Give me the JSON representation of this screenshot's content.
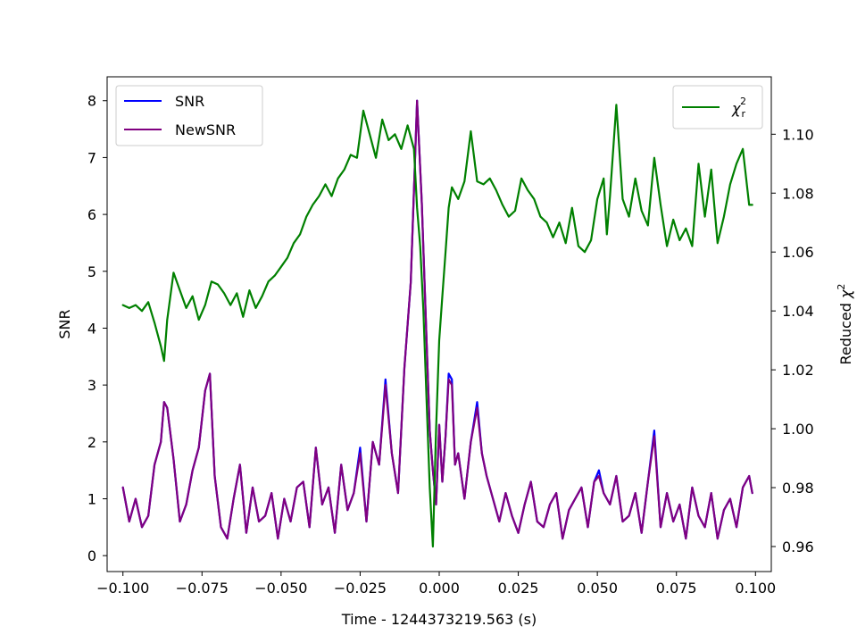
{
  "chart_data": {
    "type": "line",
    "xlabel": "Time - 1244373219.563 (s)",
    "ylabel_left": "SNR",
    "ylabel_right_text": "Reduced ",
    "ylabel_right_symbol": "χ",
    "ylabel_right_sup": "2",
    "xlim": [
      -0.105,
      0.105
    ],
    "ylim_left": [
      -0.28,
      8.42
    ],
    "ylim_right": [
      0.9515,
      1.1195
    ],
    "x_ticks": [
      -0.1,
      -0.075,
      -0.05,
      -0.025,
      0.0,
      0.025,
      0.05,
      0.075,
      0.1
    ],
    "x_tick_labels": [
      "−0.100",
      "−0.075",
      "−0.050",
      "−0.025",
      "0.000",
      "0.025",
      "0.050",
      "0.075",
      "0.100"
    ],
    "y_left_ticks": [
      0,
      1,
      2,
      3,
      4,
      5,
      6,
      7,
      8
    ],
    "y_left_tick_labels": [
      "0",
      "1",
      "2",
      "3",
      "4",
      "5",
      "6",
      "7",
      "8"
    ],
    "y_right_ticks": [
      0.96,
      0.98,
      1.0,
      1.02,
      1.04,
      1.06,
      1.08,
      1.1
    ],
    "y_right_tick_labels": [
      "0.96",
      "0.98",
      "1.00",
      "1.02",
      "1.04",
      "1.06",
      "1.08",
      "1.10"
    ],
    "legend_left": {
      "placement": "upper left",
      "entries": [
        "SNR",
        "NewSNR"
      ]
    },
    "legend_right": {
      "placement": "upper right",
      "label_symbol": "χ",
      "label_sub": "r",
      "label_sup": "2"
    },
    "series": [
      {
        "name": "SNR",
        "axis": "left",
        "color": "#0000ff",
        "x": [
          -0.1,
          -0.098,
          -0.096,
          -0.094,
          -0.092,
          -0.09,
          -0.088,
          -0.087,
          -0.086,
          -0.084,
          -0.082,
          -0.08,
          -0.078,
          -0.076,
          -0.074,
          -0.0725,
          -0.071,
          -0.069,
          -0.067,
          -0.065,
          -0.063,
          -0.061,
          -0.059,
          -0.057,
          -0.055,
          -0.053,
          -0.051,
          -0.049,
          -0.047,
          -0.045,
          -0.043,
          -0.041,
          -0.039,
          -0.037,
          -0.035,
          -0.033,
          -0.031,
          -0.029,
          -0.027,
          -0.025,
          -0.023,
          -0.021,
          -0.019,
          -0.017,
          -0.015,
          -0.013,
          -0.011,
          -0.009,
          -0.007,
          -0.0055,
          -0.004,
          -0.003,
          -0.002,
          -0.001,
          0.0,
          0.001,
          0.002,
          0.003,
          0.004,
          0.005,
          0.006,
          0.008,
          0.01,
          0.012,
          0.0135,
          0.015,
          0.017,
          0.019,
          0.021,
          0.023,
          0.025,
          0.027,
          0.029,
          0.031,
          0.033,
          0.035,
          0.037,
          0.039,
          0.041,
          0.043,
          0.045,
          0.047,
          0.049,
          0.0505,
          0.052,
          0.054,
          0.056,
          0.058,
          0.06,
          0.062,
          0.064,
          0.066,
          0.068,
          0.07,
          0.072,
          0.074,
          0.076,
          0.078,
          0.08,
          0.082,
          0.084,
          0.086,
          0.088,
          0.09,
          0.092,
          0.094,
          0.096,
          0.098,
          0.099
        ],
        "values": [
          1.2,
          0.6,
          1.0,
          0.5,
          0.7,
          1.6,
          2.0,
          2.7,
          2.6,
          1.7,
          0.6,
          0.9,
          1.5,
          1.9,
          2.9,
          3.2,
          1.4,
          0.5,
          0.3,
          1.0,
          1.6,
          0.4,
          1.2,
          0.6,
          0.7,
          1.1,
          0.3,
          1.0,
          0.6,
          1.2,
          1.3,
          0.5,
          1.9,
          0.9,
          1.2,
          0.4,
          1.6,
          0.8,
          1.1,
          1.9,
          0.6,
          2.0,
          1.6,
          3.1,
          1.8,
          1.1,
          3.3,
          4.8,
          8.0,
          6.2,
          3.8,
          2.2,
          1.5,
          0.9,
          2.3,
          1.3,
          2.1,
          3.2,
          3.1,
          1.6,
          1.8,
          1.0,
          2.0,
          2.7,
          1.8,
          1.4,
          1.0,
          0.6,
          1.1,
          0.7,
          0.4,
          0.9,
          1.3,
          0.6,
          0.5,
          0.9,
          1.1,
          0.3,
          0.8,
          1.0,
          1.2,
          0.5,
          1.3,
          1.5,
          1.1,
          0.9,
          1.4,
          0.6,
          0.7,
          1.1,
          0.4,
          1.3,
          2.2,
          0.5,
          1.1,
          0.6,
          0.9,
          0.3,
          1.2,
          0.7,
          0.5,
          1.1,
          0.3,
          0.8,
          1.0,
          0.5,
          1.2,
          1.4,
          1.1
        ]
      },
      {
        "name": "NewSNR",
        "axis": "left",
        "color": "#800080",
        "x": [
          -0.1,
          -0.098,
          -0.096,
          -0.094,
          -0.092,
          -0.09,
          -0.088,
          -0.087,
          -0.086,
          -0.084,
          -0.082,
          -0.08,
          -0.078,
          -0.076,
          -0.074,
          -0.0725,
          -0.071,
          -0.069,
          -0.067,
          -0.065,
          -0.063,
          -0.061,
          -0.059,
          -0.057,
          -0.055,
          -0.053,
          -0.051,
          -0.049,
          -0.047,
          -0.045,
          -0.043,
          -0.041,
          -0.039,
          -0.037,
          -0.035,
          -0.033,
          -0.031,
          -0.029,
          -0.027,
          -0.025,
          -0.023,
          -0.021,
          -0.019,
          -0.017,
          -0.015,
          -0.013,
          -0.011,
          -0.009,
          -0.007,
          -0.0055,
          -0.004,
          -0.003,
          -0.002,
          -0.001,
          0.0,
          0.001,
          0.002,
          0.003,
          0.004,
          0.005,
          0.006,
          0.008,
          0.01,
          0.012,
          0.0135,
          0.015,
          0.017,
          0.019,
          0.021,
          0.023,
          0.025,
          0.027,
          0.029,
          0.031,
          0.033,
          0.035,
          0.037,
          0.039,
          0.041,
          0.043,
          0.045,
          0.047,
          0.049,
          0.0505,
          0.052,
          0.054,
          0.056,
          0.058,
          0.06,
          0.062,
          0.064,
          0.066,
          0.068,
          0.07,
          0.072,
          0.074,
          0.076,
          0.078,
          0.08,
          0.082,
          0.084,
          0.086,
          0.088,
          0.09,
          0.092,
          0.094,
          0.096,
          0.098,
          0.099
        ],
        "values": [
          1.2,
          0.6,
          1.0,
          0.5,
          0.7,
          1.6,
          2.0,
          2.7,
          2.6,
          1.7,
          0.6,
          0.9,
          1.5,
          1.9,
          2.9,
          3.2,
          1.4,
          0.5,
          0.3,
          1.0,
          1.6,
          0.4,
          1.2,
          0.6,
          0.7,
          1.1,
          0.3,
          1.0,
          0.6,
          1.2,
          1.3,
          0.5,
          1.9,
          0.9,
          1.2,
          0.4,
          1.6,
          0.8,
          1.1,
          1.8,
          0.6,
          2.0,
          1.6,
          3.0,
          1.8,
          1.1,
          3.3,
          4.8,
          8.0,
          6.2,
          3.8,
          2.2,
          1.5,
          0.9,
          2.3,
          1.3,
          2.1,
          3.1,
          3.0,
          1.6,
          1.8,
          1.0,
          2.0,
          2.6,
          1.8,
          1.4,
          1.0,
          0.6,
          1.1,
          0.7,
          0.4,
          0.9,
          1.3,
          0.6,
          0.5,
          0.9,
          1.1,
          0.3,
          0.8,
          1.0,
          1.2,
          0.5,
          1.3,
          1.4,
          1.1,
          0.9,
          1.4,
          0.6,
          0.7,
          1.1,
          0.4,
          1.3,
          2.1,
          0.5,
          1.1,
          0.6,
          0.9,
          0.3,
          1.2,
          0.7,
          0.5,
          1.1,
          0.3,
          0.8,
          1.0,
          0.5,
          1.2,
          1.4,
          1.1
        ]
      },
      {
        "name": "χ_r^2",
        "axis": "right",
        "color": "#008000",
        "x": [
          -0.1,
          -0.098,
          -0.096,
          -0.094,
          -0.092,
          -0.09,
          -0.088,
          -0.087,
          -0.086,
          -0.084,
          -0.082,
          -0.08,
          -0.078,
          -0.076,
          -0.074,
          -0.072,
          -0.07,
          -0.068,
          -0.066,
          -0.064,
          -0.062,
          -0.06,
          -0.058,
          -0.056,
          -0.054,
          -0.052,
          -0.05,
          -0.048,
          -0.046,
          -0.044,
          -0.042,
          -0.04,
          -0.038,
          -0.036,
          -0.034,
          -0.032,
          -0.03,
          -0.028,
          -0.026,
          -0.024,
          -0.022,
          -0.02,
          -0.018,
          -0.016,
          -0.014,
          -0.012,
          -0.01,
          -0.008,
          -0.007,
          -0.006,
          -0.005,
          -0.004,
          -0.003,
          -0.002,
          -0.001,
          0.0,
          0.001,
          0.002,
          0.003,
          0.004,
          0.006,
          0.008,
          0.01,
          0.012,
          0.014,
          0.016,
          0.018,
          0.02,
          0.022,
          0.024,
          0.026,
          0.028,
          0.03,
          0.032,
          0.034,
          0.036,
          0.038,
          0.04,
          0.042,
          0.044,
          0.046,
          0.048,
          0.05,
          0.052,
          0.053,
          0.054,
          0.056,
          0.058,
          0.06,
          0.062,
          0.064,
          0.066,
          0.068,
          0.07,
          0.072,
          0.074,
          0.076,
          0.078,
          0.08,
          0.082,
          0.084,
          0.086,
          0.088,
          0.09,
          0.092,
          0.094,
          0.096,
          0.098,
          0.099
        ],
        "values": [
          1.042,
          1.041,
          1.042,
          1.04,
          1.043,
          1.036,
          1.028,
          1.023,
          1.037,
          1.053,
          1.047,
          1.041,
          1.045,
          1.037,
          1.042,
          1.05,
          1.049,
          1.046,
          1.042,
          1.046,
          1.038,
          1.047,
          1.041,
          1.045,
          1.05,
          1.052,
          1.055,
          1.058,
          1.063,
          1.066,
          1.072,
          1.076,
          1.079,
          1.083,
          1.079,
          1.085,
          1.088,
          1.093,
          1.092,
          1.108,
          1.1,
          1.092,
          1.105,
          1.098,
          1.1,
          1.095,
          1.103,
          1.095,
          1.075,
          1.062,
          1.04,
          1.01,
          0.98,
          0.96,
          1.0,
          1.03,
          1.045,
          1.06,
          1.075,
          1.082,
          1.078,
          1.084,
          1.101,
          1.084,
          1.083,
          1.085,
          1.081,
          1.076,
          1.072,
          1.074,
          1.085,
          1.081,
          1.078,
          1.072,
          1.07,
          1.065,
          1.07,
          1.063,
          1.075,
          1.062,
          1.06,
          1.064,
          1.078,
          1.085,
          1.066,
          1.079,
          1.11,
          1.078,
          1.072,
          1.085,
          1.074,
          1.069,
          1.092,
          1.076,
          1.062,
          1.071,
          1.064,
          1.068,
          1.062,
          1.09,
          1.072,
          1.088,
          1.063,
          1.072,
          1.083,
          1.09,
          1.095,
          1.076,
          1.076
        ]
      }
    ]
  }
}
